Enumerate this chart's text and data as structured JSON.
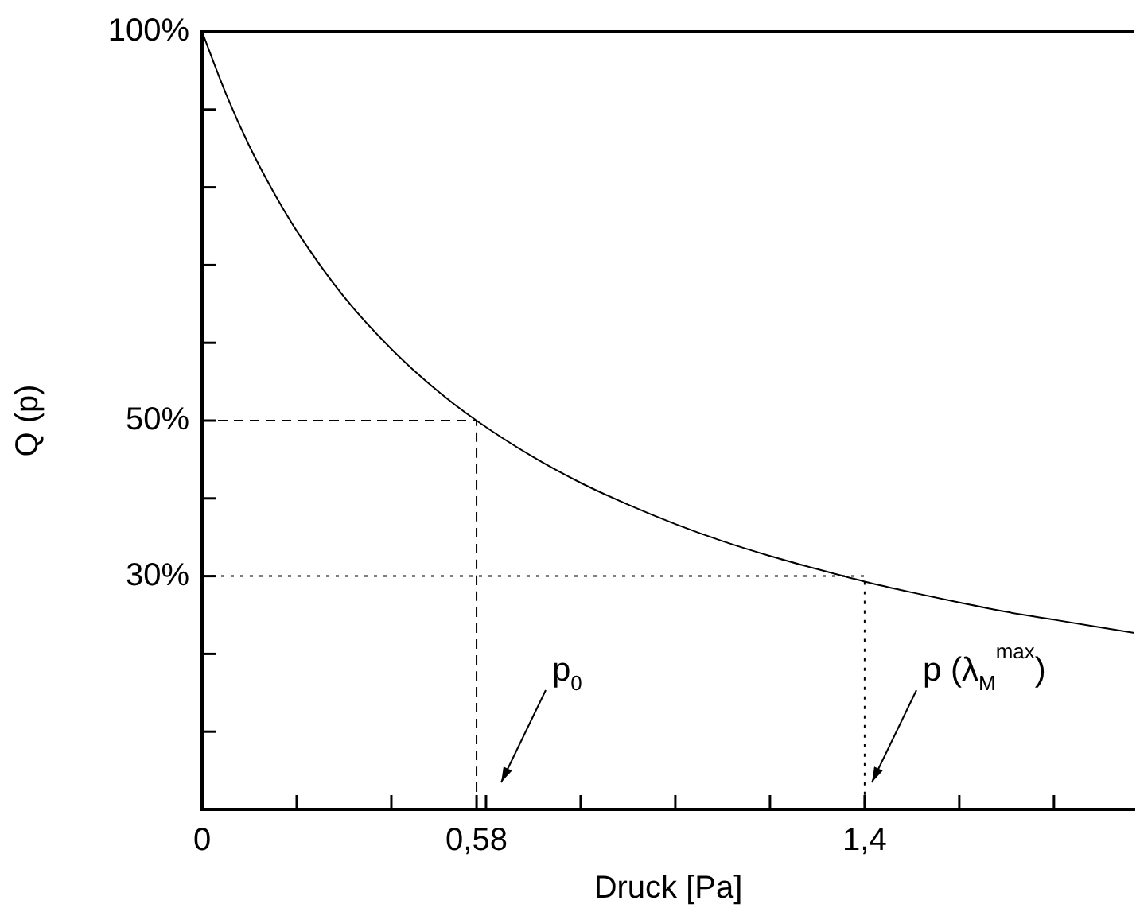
{
  "chart_data": {
    "type": "line",
    "xlabel": "Druck [Pa]",
    "ylabel": "Q (p)",
    "xlim": [
      0,
      1.97
    ],
    "ylim": [
      0,
      100
    ],
    "xticks": [
      0,
      {
        "value": 0.2,
        "label": null
      },
      {
        "value": 0.4,
        "label": null
      },
      {
        "value": 0.58,
        "label": "0,58"
      },
      {
        "value": 0.6,
        "label": null
      },
      {
        "value": 0.8,
        "label": null
      },
      {
        "value": 1.0,
        "label": null
      },
      {
        "value": 1.2,
        "label": null
      },
      {
        "value": 1.4,
        "label": "1,4"
      },
      {
        "value": 1.6,
        "label": null
      },
      {
        "value": 1.8,
        "label": null
      }
    ],
    "yticks": [
      {
        "value": 10,
        "label": null
      },
      {
        "value": 20,
        "label": null
      },
      {
        "value": 30,
        "label": "30%"
      },
      {
        "value": 40,
        "label": null
      },
      {
        "value": 50,
        "label": "50%"
      },
      {
        "value": 60,
        "label": null
      },
      {
        "value": 70,
        "label": null
      },
      {
        "value": 80,
        "label": null
      },
      {
        "value": 90,
        "label": null
      },
      {
        "value": 100,
        "label": "100%"
      }
    ],
    "legend": false,
    "marker": "none",
    "series": [
      {
        "color": "#000000",
        "line_style": "solid",
        "x": [
          0,
          0.05,
          0.1,
          0.15,
          0.2,
          0.3,
          0.4,
          0.5,
          0.58,
          0.7,
          0.8,
          0.9,
          1.0,
          1.1,
          1.2,
          1.3,
          1.4,
          1.5,
          1.6,
          1.7,
          1.8,
          1.97
        ],
        "values": [
          100,
          92.1,
          85.3,
          79.5,
          74.4,
          65.9,
          59.2,
          53.7,
          50,
          45.3,
          42.0,
          39.2,
          36.7,
          34.5,
          32.6,
          30.9,
          29.3,
          27.9,
          26.6,
          25.4,
          24.4,
          22.7
        ]
      },
      {
        "color": "#000000",
        "line_style": "dashed",
        "x": [
          0,
          0.58,
          0.58
        ],
        "values": [
          50,
          50,
          0
        ]
      },
      {
        "color": "#000000",
        "line_style": "dotted",
        "x": [
          0,
          1.4,
          1.4
        ],
        "values": [
          30,
          30,
          0
        ]
      }
    ],
    "annotations": [
      "p$_{0}$",
      "p (λ$_{M}$$^{max}$)"
    ]
  }
}
